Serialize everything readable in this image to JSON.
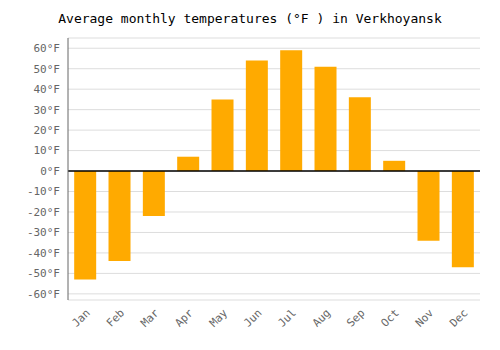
{
  "chart_data": {
    "type": "bar",
    "title": "Average monthly temperatures (°F ) in Verkhoyansk",
    "categories": [
      "Jan",
      "Feb",
      "Mar",
      "Apr",
      "May",
      "Jun",
      "Jul",
      "Aug",
      "Sep",
      "Oct",
      "Nov",
      "Dec"
    ],
    "values": [
      -53,
      -44,
      -22,
      7,
      35,
      54,
      59,
      51,
      36,
      5,
      -34,
      -47
    ],
    "color": "#FFAA00",
    "ylim": [
      -63,
      65
    ],
    "yticks": [
      {
        "value": -60,
        "label": "-60°F"
      },
      {
        "value": -50,
        "label": "-50°F"
      },
      {
        "value": -40,
        "label": "-40°F"
      },
      {
        "value": -30,
        "label": "-30°F"
      },
      {
        "value": -20,
        "label": "-20°F"
      },
      {
        "value": -10,
        "label": "-10°F"
      },
      {
        "value": 0,
        "label": "0°F"
      },
      {
        "value": 10,
        "label": "10°F"
      },
      {
        "value": 20,
        "label": "20°F"
      },
      {
        "value": 30,
        "label": "30°F"
      },
      {
        "value": 40,
        "label": "40°F"
      },
      {
        "value": 50,
        "label": "50°F"
      },
      {
        "value": 60,
        "label": "60°F"
      }
    ],
    "grid": true
  }
}
